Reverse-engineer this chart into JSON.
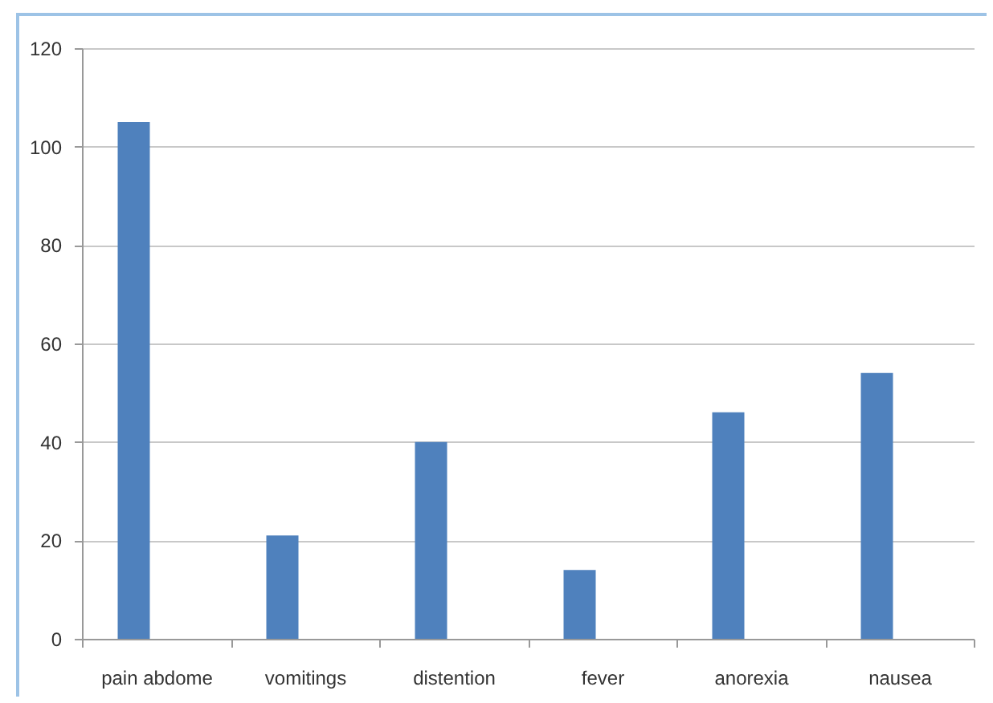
{
  "chart_data": {
    "type": "bar",
    "categories": [
      "pain abdome",
      "vomitings",
      "distention",
      "fever",
      "anorexia",
      "nausea"
    ],
    "values": [
      105,
      21,
      40,
      14,
      46,
      54
    ],
    "color": "#4f81bd",
    "ylim": [
      0,
      120
    ],
    "yticks": [
      0,
      20,
      40,
      60,
      80,
      100,
      120
    ],
    "grid": "y"
  }
}
